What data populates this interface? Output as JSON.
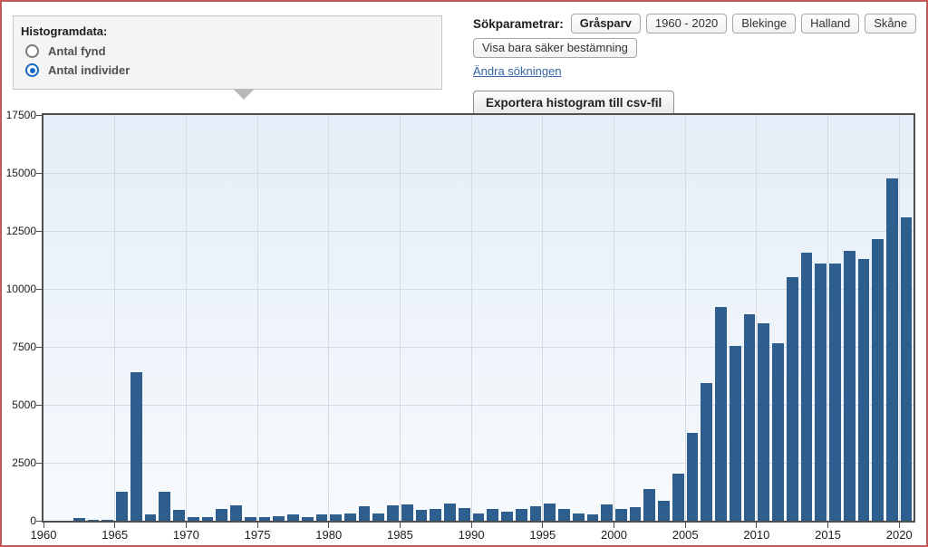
{
  "panel": {
    "title": "Histogramdata:",
    "options": [
      {
        "label": "Antal fynd",
        "selected": false
      },
      {
        "label": "Antal individer",
        "selected": true
      }
    ]
  },
  "search": {
    "label": "Sökparametrar:",
    "params": [
      "Gråsparv",
      "1960 - 2020",
      "Blekinge",
      "Halland",
      "Skåne"
    ],
    "filter_chip": "Visa bara säker bestämning",
    "edit_link": "Ändra sökningen",
    "export_button": "Exportera histogram till csv-fil"
  },
  "colors": {
    "bar": "#2e5e8e",
    "page_border": "#c25957",
    "grid": "#d6dbe2",
    "radio_selected": "#1668c4"
  },
  "chart_data": {
    "type": "bar",
    "title": "",
    "xlabel": "",
    "ylabel": "",
    "x_start": 1960,
    "x_end": 2020,
    "categories": [
      1960,
      1961,
      1962,
      1963,
      1964,
      1965,
      1966,
      1967,
      1968,
      1969,
      1970,
      1971,
      1972,
      1973,
      1974,
      1975,
      1976,
      1977,
      1978,
      1979,
      1980,
      1981,
      1982,
      1983,
      1984,
      1985,
      1986,
      1987,
      1988,
      1989,
      1990,
      1991,
      1992,
      1993,
      1994,
      1995,
      1996,
      1997,
      1998,
      1999,
      2000,
      2001,
      2002,
      2003,
      2004,
      2005,
      2006,
      2007,
      2008,
      2009,
      2010,
      2011,
      2012,
      2013,
      2014,
      2015,
      2016,
      2017,
      2018,
      2019,
      2020
    ],
    "values": [
      0,
      0,
      120,
      50,
      40,
      1250,
      6400,
      280,
      1250,
      450,
      175,
      140,
      520,
      650,
      160,
      140,
      200,
      290,
      150,
      260,
      285,
      325,
      625,
      320,
      650,
      700,
      480,
      490,
      740,
      540,
      300,
      500,
      410,
      500,
      610,
      760,
      510,
      330,
      270,
      700,
      500,
      580,
      1350,
      850,
      2050,
      3800,
      5950,
      9200,
      7550,
      8900,
      8500,
      7650,
      10500,
      11550,
      11100,
      11100,
      11650,
      11300,
      12150,
      14750,
      13100
    ],
    "xticks": [
      1960,
      1965,
      1970,
      1975,
      1980,
      1985,
      1990,
      1995,
      2000,
      2005,
      2010,
      2015,
      2020
    ],
    "yticks": [
      0,
      2500,
      5000,
      7500,
      10000,
      12500,
      15000,
      17500
    ],
    "ylim": [
      0,
      17500
    ],
    "grid": true,
    "legend": "none"
  }
}
